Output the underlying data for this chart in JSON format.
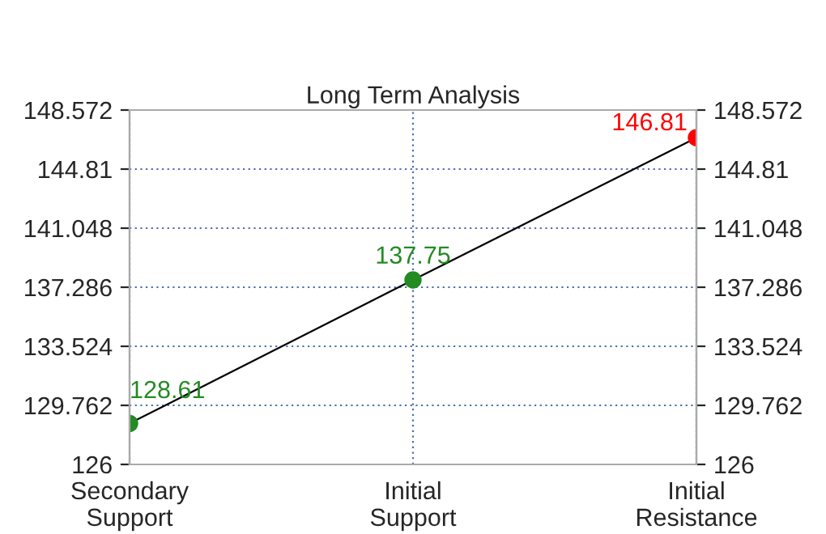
{
  "chart_data": {
    "type": "line",
    "title": "Long Term Analysis",
    "categories": [
      "Secondary\nSupport",
      "Initial\nSupport",
      "Initial\nResistance"
    ],
    "series": [
      {
        "color": "#000000",
        "colors": [
          "#228b22",
          "#228b22",
          "#ff0000"
        ],
        "values": [
          128.61,
          137.75,
          146.81
        ]
      }
    ],
    "data_labels": true,
    "marker": "circle",
    "ylim": [
      126,
      148.572
    ],
    "yticks": [
      126,
      129.762,
      133.524,
      137.286,
      141.048,
      144.81,
      148.572
    ],
    "y2lim": [
      126,
      148.572
    ],
    "y2ticks": [
      126,
      129.762,
      133.524,
      137.286,
      141.048,
      144.81,
      148.572
    ],
    "grid": true
  }
}
